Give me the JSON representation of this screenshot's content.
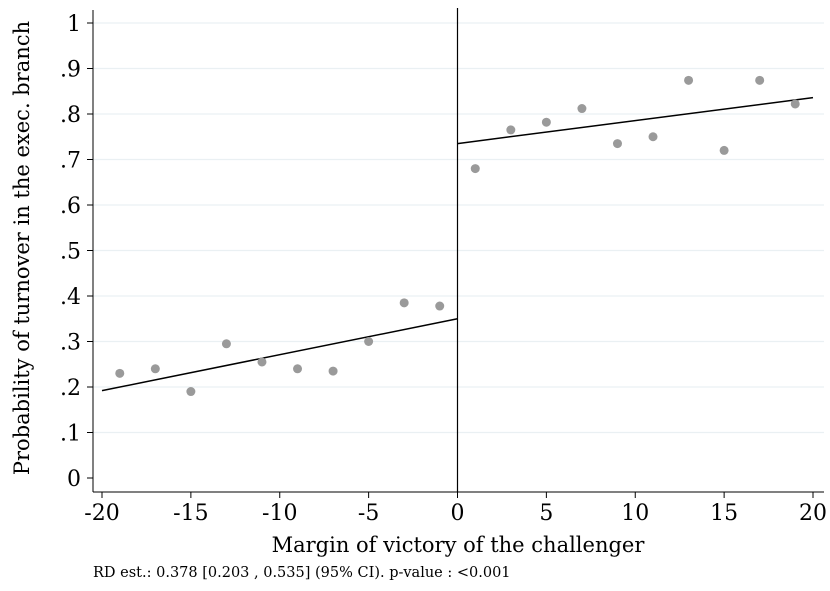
{
  "chart_data": {
    "type": "scatter",
    "xlabel": "Margin of victory of the challenger",
    "ylabel": "Probability of turnover in the exec. branch",
    "xlim": [
      -20,
      20
    ],
    "ylim": [
      0,
      1
    ],
    "x_ticks": [
      -20,
      -15,
      -10,
      -5,
      0,
      5,
      10,
      15,
      20
    ],
    "x_tick_labels": [
      "-20",
      "-15",
      "-10",
      "-5",
      "0",
      "5",
      "10",
      "15",
      "20"
    ],
    "y_ticks": [
      0,
      0.1,
      0.2,
      0.3,
      0.4,
      0.5,
      0.6,
      0.7,
      0.8,
      0.9,
      1
    ],
    "y_tick_labels": [
      "0",
      ".1",
      ".2",
      ".3",
      ".4",
      ".5",
      ".6",
      ".7",
      ".8",
      ".9",
      "1"
    ],
    "grid": true,
    "cutoff": 0,
    "points": {
      "x": [
        -19,
        -17,
        -15,
        -13,
        -11,
        -9,
        -7,
        -5,
        -3,
        -1,
        1,
        3,
        5,
        7,
        9,
        11,
        13,
        15,
        17,
        19
      ],
      "y": [
        0.23,
        0.24,
        0.19,
        0.295,
        0.255,
        0.24,
        0.235,
        0.3,
        0.385,
        0.378,
        0.68,
        0.765,
        0.782,
        0.812,
        0.735,
        0.75,
        0.874,
        0.72,
        0.874,
        0.822
      ]
    },
    "fit_lines": [
      {
        "x": [
          -20,
          0
        ],
        "y": [
          0.192,
          0.35
        ]
      },
      {
        "x": [
          0,
          20
        ],
        "y": [
          0.735,
          0.836
        ]
      }
    ],
    "colors": {
      "points": "#9a9a9a",
      "lines": "#000000",
      "grid": "#eaf0f3"
    }
  },
  "note": "RD est.: 0.378 [0.203 , 0.535] (95% CI). p-value : <0.001"
}
